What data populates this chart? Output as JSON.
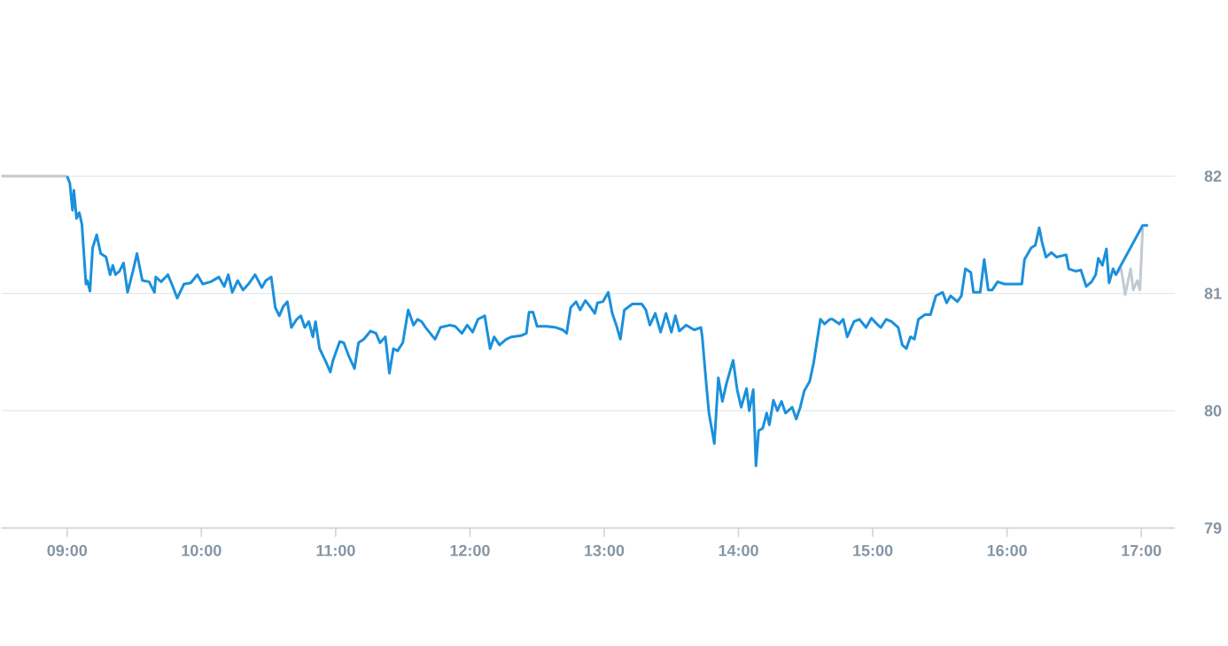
{
  "chart_data": {
    "type": "line",
    "xlim": [
      8.51,
      17.25
    ],
    "xticks": [
      {
        "value": 9,
        "label": "09:00"
      },
      {
        "value": 10,
        "label": "10:00"
      },
      {
        "value": 11,
        "label": "11:00"
      },
      {
        "value": 12,
        "label": "12:00"
      },
      {
        "value": 13,
        "label": "13:00"
      },
      {
        "value": 14,
        "label": "14:00"
      },
      {
        "value": 15,
        "label": "15:00"
      },
      {
        "value": 16,
        "label": "16:00"
      },
      {
        "value": 17,
        "label": "17:00"
      }
    ],
    "ylim": [
      79,
      82
    ],
    "yticks": [
      79,
      80,
      81,
      82
    ],
    "grid": "y",
    "series": [
      {
        "color": "#c2cad2",
        "x": [
          8.51,
          9.0
        ],
        "values": [
          82.0,
          82.0
        ]
      },
      {
        "color": "#c2cad2",
        "x": [
          16.81,
          16.85,
          16.88,
          16.92,
          16.94,
          16.97,
          16.99,
          17.01
        ],
        "values": [
          81.16,
          81.21,
          80.99,
          81.21,
          81.03,
          81.11,
          81.03,
          81.56
        ]
      },
      {
        "color": "#1a90dc",
        "x": [
          9.0,
          9.02,
          9.04,
          9.05,
          9.07,
          9.09,
          9.11,
          9.14,
          9.15,
          9.17,
          9.19,
          9.22,
          9.25,
          9.29,
          9.32,
          9.34,
          9.36,
          9.39,
          9.42,
          9.45,
          9.49,
          9.52,
          9.56,
          9.61,
          9.65,
          9.66,
          9.7,
          9.75,
          9.79,
          9.82,
          9.87,
          9.92,
          9.97,
          10.01,
          10.07,
          10.13,
          10.17,
          10.2,
          10.23,
          10.27,
          10.31,
          10.35,
          10.4,
          10.45,
          10.48,
          10.52,
          10.55,
          10.58,
          10.61,
          10.64,
          10.67,
          10.71,
          10.74,
          10.77,
          10.8,
          10.83,
          10.85,
          10.88,
          10.93,
          10.96,
          10.98,
          11.03,
          11.06,
          11.1,
          11.14,
          11.17,
          11.21,
          11.26,
          11.3,
          11.33,
          11.37,
          11.4,
          11.43,
          11.46,
          11.5,
          11.54,
          11.58,
          11.61,
          11.64,
          11.67,
          11.74,
          11.78,
          11.85,
          11.89,
          11.94,
          11.98,
          12.02,
          12.06,
          12.11,
          12.15,
          12.18,
          12.22,
          12.27,
          12.31,
          12.38,
          12.42,
          12.44,
          12.47,
          12.5,
          12.57,
          12.64,
          12.69,
          12.72,
          12.75,
          12.79,
          12.82,
          12.86,
          12.9,
          12.93,
          12.95,
          12.99,
          13.03,
          13.06,
          13.09,
          13.12,
          13.15,
          13.21,
          13.28,
          13.31,
          13.34,
          13.38,
          13.42,
          13.46,
          13.5,
          13.53,
          13.56,
          13.61,
          13.67,
          13.72,
          13.73,
          13.76,
          13.78,
          13.82,
          13.85,
          13.88,
          13.91,
          13.96,
          13.99,
          14.02,
          14.06,
          14.08,
          14.11,
          14.13,
          14.15,
          14.18,
          14.21,
          14.23,
          14.26,
          14.29,
          14.32,
          14.35,
          14.4,
          14.43,
          14.46,
          14.49,
          14.53,
          14.56,
          14.61,
          14.64,
          14.68,
          14.7,
          14.75,
          14.78,
          14.81,
          14.86,
          14.9,
          14.95,
          14.99,
          15.03,
          15.06,
          15.1,
          15.14,
          15.19,
          15.22,
          15.25,
          15.28,
          15.31,
          15.34,
          15.39,
          15.43,
          15.47,
          15.52,
          15.55,
          15.58,
          15.63,
          15.66,
          15.69,
          15.73,
          15.75,
          15.8,
          15.83,
          15.86,
          15.89,
          15.93,
          15.98,
          16.11,
          16.13,
          16.18,
          16.21,
          16.24,
          16.26,
          16.29,
          16.33,
          16.37,
          16.44,
          16.46,
          16.51,
          16.55,
          16.59,
          16.63,
          16.66,
          16.68,
          16.71,
          16.74,
          16.76,
          16.79,
          16.81,
          17.01,
          17.05
        ],
        "values": [
          82.0,
          81.94,
          81.71,
          81.88,
          81.64,
          81.69,
          81.59,
          81.08,
          81.11,
          81.02,
          81.39,
          81.5,
          81.34,
          81.31,
          81.16,
          81.24,
          81.16,
          81.19,
          81.26,
          81.01,
          81.19,
          81.34,
          81.11,
          81.1,
          81.01,
          81.14,
          81.1,
          81.16,
          81.05,
          80.96,
          81.08,
          81.09,
          81.16,
          81.08,
          81.1,
          81.14,
          81.06,
          81.16,
          81.01,
          81.11,
          81.03,
          81.08,
          81.16,
          81.05,
          81.11,
          81.14,
          80.88,
          80.81,
          80.89,
          80.93,
          80.71,
          80.78,
          80.81,
          80.71,
          80.76,
          80.63,
          80.76,
          80.53,
          80.41,
          80.33,
          80.43,
          80.59,
          80.58,
          80.46,
          80.36,
          80.58,
          80.61,
          80.68,
          80.66,
          80.58,
          80.63,
          80.32,
          80.53,
          80.51,
          80.58,
          80.86,
          80.73,
          80.78,
          80.76,
          80.71,
          80.61,
          80.71,
          80.73,
          80.72,
          80.66,
          80.73,
          80.67,
          80.78,
          80.81,
          80.53,
          80.63,
          80.56,
          80.61,
          80.63,
          80.64,
          80.66,
          80.84,
          80.84,
          80.72,
          80.72,
          80.71,
          80.69,
          80.66,
          80.88,
          80.93,
          80.86,
          80.94,
          80.88,
          80.83,
          80.92,
          80.93,
          81.01,
          80.83,
          80.73,
          80.61,
          80.86,
          80.91,
          80.91,
          80.86,
          80.73,
          80.83,
          80.67,
          80.83,
          80.67,
          80.81,
          80.68,
          80.73,
          80.69,
          80.71,
          80.63,
          80.23,
          79.98,
          79.72,
          80.28,
          80.08,
          80.23,
          80.43,
          80.18,
          80.03,
          80.19,
          80.0,
          80.18,
          79.53,
          79.83,
          79.85,
          79.98,
          79.88,
          80.09,
          80.0,
          80.08,
          79.98,
          80.03,
          79.93,
          80.03,
          80.17,
          80.25,
          80.41,
          80.78,
          80.74,
          80.78,
          80.78,
          80.74,
          80.78,
          80.63,
          80.76,
          80.78,
          80.71,
          80.79,
          80.74,
          80.71,
          80.78,
          80.76,
          80.71,
          80.56,
          80.53,
          80.63,
          80.61,
          80.78,
          80.82,
          80.82,
          80.98,
          81.01,
          80.92,
          80.98,
          80.93,
          80.98,
          81.21,
          81.18,
          81.01,
          81.01,
          81.29,
          81.03,
          81.03,
          81.1,
          81.08,
          81.08,
          81.29,
          81.39,
          81.41,
          81.56,
          81.44,
          81.31,
          81.35,
          81.31,
          81.33,
          81.21,
          81.19,
          81.2,
          81.06,
          81.1,
          81.16,
          81.3,
          81.24,
          81.38,
          81.09,
          81.21,
          81.16,
          81.58,
          81.58
        ]
      }
    ]
  }
}
